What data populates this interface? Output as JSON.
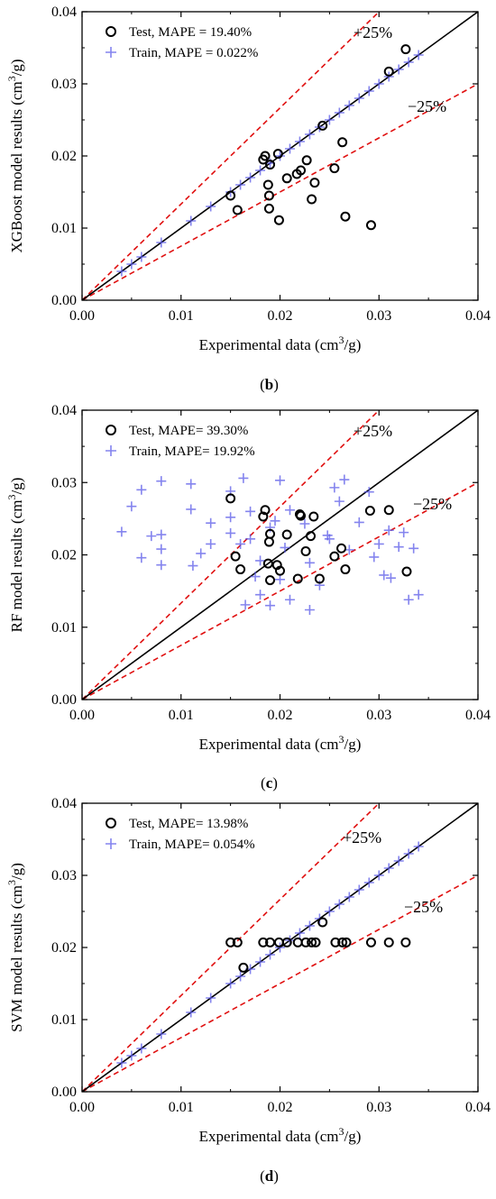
{
  "colors": {
    "test": "#000000",
    "train": "#5b5be8",
    "parity": "#000000",
    "band": "#e01010"
  },
  "chart_data": [
    {
      "type": "scatter",
      "panel_label": "(b)",
      "xlabel": "Experimental data (cm³/g)",
      "ylabel": "XGBoost model results (cm³/g)",
      "xlim": [
        0,
        0.04
      ],
      "ylim": [
        0,
        0.04
      ],
      "xticks": [
        "0.00",
        "0.01",
        "0.02",
        "0.03",
        "0.04"
      ],
      "yticks": [
        "0.00",
        "0.01",
        "0.02",
        "0.03",
        "0.04"
      ],
      "band_plus": "+25%",
      "band_minus": "−25%",
      "series": [
        {
          "name": "Test, MAPE = 19.40%",
          "marker": "circle",
          "points": [
            [
              0.015,
              0.0145
            ],
            [
              0.0157,
              0.0125
            ],
            [
              0.0183,
              0.0195
            ],
            [
              0.0185,
              0.02
            ],
            [
              0.0188,
              0.016
            ],
            [
              0.019,
              0.0188
            ],
            [
              0.0189,
              0.0145
            ],
            [
              0.0189,
              0.0127
            ],
            [
              0.0198,
              0.0203
            ],
            [
              0.0199,
              0.0111
            ],
            [
              0.0207,
              0.0169
            ],
            [
              0.0217,
              0.0175
            ],
            [
              0.0221,
              0.018
            ],
            [
              0.0227,
              0.0194
            ],
            [
              0.0232,
              0.014
            ],
            [
              0.0235,
              0.0163
            ],
            [
              0.0243,
              0.0242
            ],
            [
              0.0255,
              0.0183
            ],
            [
              0.0263,
              0.0219
            ],
            [
              0.0266,
              0.0116
            ],
            [
              0.0292,
              0.0104
            ],
            [
              0.031,
              0.0317
            ],
            [
              0.0327,
              0.0348
            ]
          ]
        },
        {
          "name": "Train, MAPE = 0.022%",
          "marker": "plus",
          "points": [
            [
              0.004,
              0.004
            ],
            [
              0.005,
              0.005
            ],
            [
              0.006,
              0.006
            ],
            [
              0.008,
              0.008
            ],
            [
              0.011,
              0.011
            ],
            [
              0.013,
              0.013
            ],
            [
              0.015,
              0.015
            ],
            [
              0.016,
              0.016
            ],
            [
              0.017,
              0.017
            ],
            [
              0.018,
              0.018
            ],
            [
              0.019,
              0.019
            ],
            [
              0.02,
              0.02
            ],
            [
              0.021,
              0.021
            ],
            [
              0.022,
              0.022
            ],
            [
              0.023,
              0.023
            ],
            [
              0.024,
              0.024
            ],
            [
              0.025,
              0.025
            ],
            [
              0.026,
              0.026
            ],
            [
              0.027,
              0.027
            ],
            [
              0.028,
              0.028
            ],
            [
              0.029,
              0.029
            ],
            [
              0.03,
              0.03
            ],
            [
              0.031,
              0.031
            ],
            [
              0.032,
              0.032
            ],
            [
              0.033,
              0.033
            ],
            [
              0.034,
              0.034
            ]
          ]
        }
      ]
    },
    {
      "type": "scatter",
      "panel_label": "(c)",
      "xlabel": "Experimental data (cm³/g)",
      "ylabel": "RF model results (cm³/g)",
      "xlim": [
        0,
        0.04
      ],
      "ylim": [
        0,
        0.04
      ],
      "xticks": [
        "0.00",
        "0.01",
        "0.02",
        "0.03",
        "0.04"
      ],
      "yticks": [
        "0.00",
        "0.01",
        "0.02",
        "0.03",
        "0.04"
      ],
      "band_plus": "+25%",
      "band_minus": "−25%",
      "series": [
        {
          "name": "Test, MAPE= 39.30%",
          "marker": "circle",
          "points": [
            [
              0.015,
              0.0278
            ],
            [
              0.0155,
              0.0198
            ],
            [
              0.016,
              0.018
            ],
            [
              0.0183,
              0.0253
            ],
            [
              0.0185,
              0.0262
            ],
            [
              0.0188,
              0.0188
            ],
            [
              0.0189,
              0.0218
            ],
            [
              0.019,
              0.0229
            ],
            [
              0.019,
              0.0165
            ],
            [
              0.0197,
              0.0186
            ],
            [
              0.02,
              0.0178
            ],
            [
              0.0207,
              0.0228
            ],
            [
              0.0218,
              0.0167
            ],
            [
              0.022,
              0.0256
            ],
            [
              0.0221,
              0.0254
            ],
            [
              0.0226,
              0.0205
            ],
            [
              0.0231,
              0.0226
            ],
            [
              0.0234,
              0.0253
            ],
            [
              0.024,
              0.0167
            ],
            [
              0.0255,
              0.0198
            ],
            [
              0.0262,
              0.0209
            ],
            [
              0.0266,
              0.018
            ],
            [
              0.0291,
              0.0261
            ],
            [
              0.031,
              0.0262
            ],
            [
              0.0328,
              0.0177
            ]
          ]
        },
        {
          "name": "Train, MAPE= 19.92%",
          "marker": "plus",
          "points": [
            [
              0.004,
              0.0232
            ],
            [
              0.005,
              0.0267
            ],
            [
              0.006,
              0.029
            ],
            [
              0.006,
              0.0196
            ],
            [
              0.007,
              0.0226
            ],
            [
              0.008,
              0.0228
            ],
            [
              0.008,
              0.0302
            ],
            [
              0.008,
              0.0208
            ],
            [
              0.008,
              0.0186
            ],
            [
              0.011,
              0.0298
            ],
            [
              0.011,
              0.0263
            ],
            [
              0.0112,
              0.0185
            ],
            [
              0.012,
              0.0202
            ],
            [
              0.013,
              0.0244
            ],
            [
              0.013,
              0.0215
            ],
            [
              0.015,
              0.023
            ],
            [
              0.015,
              0.0252
            ],
            [
              0.015,
              0.0288
            ],
            [
              0.016,
              0.0215
            ],
            [
              0.0163,
              0.0306
            ],
            [
              0.0165,
              0.0131
            ],
            [
              0.017,
              0.0222
            ],
            [
              0.017,
              0.026
            ],
            [
              0.0175,
              0.017
            ],
            [
              0.018,
              0.0192
            ],
            [
              0.018,
              0.0145
            ],
            [
              0.019,
              0.0238
            ],
            [
              0.019,
              0.013
            ],
            [
              0.0195,
              0.0247
            ],
            [
              0.02,
              0.0303
            ],
            [
              0.02,
              0.0166
            ],
            [
              0.0205,
              0.021
            ],
            [
              0.021,
              0.0138
            ],
            [
              0.021,
              0.0262
            ],
            [
              0.0225,
              0.0243
            ],
            [
              0.023,
              0.0124
            ],
            [
              0.023,
              0.0189
            ],
            [
              0.024,
              0.0158
            ],
            [
              0.0248,
              0.0227
            ],
            [
              0.025,
              0.0222
            ],
            [
              0.0255,
              0.0293
            ],
            [
              0.026,
              0.0274
            ],
            [
              0.0265,
              0.0304
            ],
            [
              0.027,
              0.0207
            ],
            [
              0.028,
              0.0245
            ],
            [
              0.029,
              0.0287
            ],
            [
              0.0295,
              0.0197
            ],
            [
              0.03,
              0.0215
            ],
            [
              0.0305,
              0.0172
            ],
            [
              0.031,
              0.0234
            ],
            [
              0.0312,
              0.0168
            ],
            [
              0.032,
              0.0211
            ],
            [
              0.0325,
              0.0231
            ],
            [
              0.033,
              0.0138
            ],
            [
              0.0335,
              0.0209
            ],
            [
              0.034,
              0.0145
            ]
          ]
        }
      ]
    },
    {
      "type": "scatter",
      "panel_label": "(d)",
      "xlabel": "Experimental data (cm³/g)",
      "ylabel": "SVM model results (cm³/g)",
      "xlim": [
        0,
        0.04
      ],
      "ylim": [
        0,
        0.04
      ],
      "xticks": [
        "0.00",
        "0.01",
        "0.02",
        "0.03",
        "0.04"
      ],
      "yticks": [
        "0.00",
        "0.01",
        "0.02",
        "0.03",
        "0.04"
      ],
      "band_plus": "+25%",
      "band_minus": "−25%",
      "series": [
        {
          "name": "Test, MAPE= 13.98%",
          "marker": "circle",
          "points": [
            [
              0.015,
              0.0207
            ],
            [
              0.0157,
              0.0207
            ],
            [
              0.0163,
              0.0172
            ],
            [
              0.0183,
              0.0207
            ],
            [
              0.019,
              0.0207
            ],
            [
              0.0199,
              0.0207
            ],
            [
              0.0207,
              0.0207
            ],
            [
              0.0218,
              0.0207
            ],
            [
              0.0226,
              0.0207
            ],
            [
              0.0232,
              0.0207
            ],
            [
              0.0236,
              0.0207
            ],
            [
              0.0243,
              0.0235
            ],
            [
              0.0256,
              0.0207
            ],
            [
              0.0263,
              0.0207
            ],
            [
              0.0267,
              0.0207
            ],
            [
              0.0292,
              0.0207
            ],
            [
              0.031,
              0.0207
            ],
            [
              0.0327,
              0.0207
            ]
          ]
        },
        {
          "name": "Train, MAPE= 0.054%",
          "marker": "plus",
          "points": [
            [
              0.004,
              0.004
            ],
            [
              0.005,
              0.005
            ],
            [
              0.006,
              0.006
            ],
            [
              0.008,
              0.008
            ],
            [
              0.011,
              0.011
            ],
            [
              0.013,
              0.013
            ],
            [
              0.015,
              0.015
            ],
            [
              0.016,
              0.016
            ],
            [
              0.017,
              0.017
            ],
            [
              0.018,
              0.018
            ],
            [
              0.019,
              0.019
            ],
            [
              0.02,
              0.02
            ],
            [
              0.021,
              0.021
            ],
            [
              0.022,
              0.022
            ],
            [
              0.023,
              0.023
            ],
            [
              0.024,
              0.024
            ],
            [
              0.025,
              0.025
            ],
            [
              0.026,
              0.026
            ],
            [
              0.027,
              0.027
            ],
            [
              0.028,
              0.028
            ],
            [
              0.029,
              0.029
            ],
            [
              0.03,
              0.03
            ],
            [
              0.031,
              0.031
            ],
            [
              0.032,
              0.032
            ],
            [
              0.033,
              0.033
            ],
            [
              0.034,
              0.034
            ]
          ]
        }
      ]
    }
  ]
}
